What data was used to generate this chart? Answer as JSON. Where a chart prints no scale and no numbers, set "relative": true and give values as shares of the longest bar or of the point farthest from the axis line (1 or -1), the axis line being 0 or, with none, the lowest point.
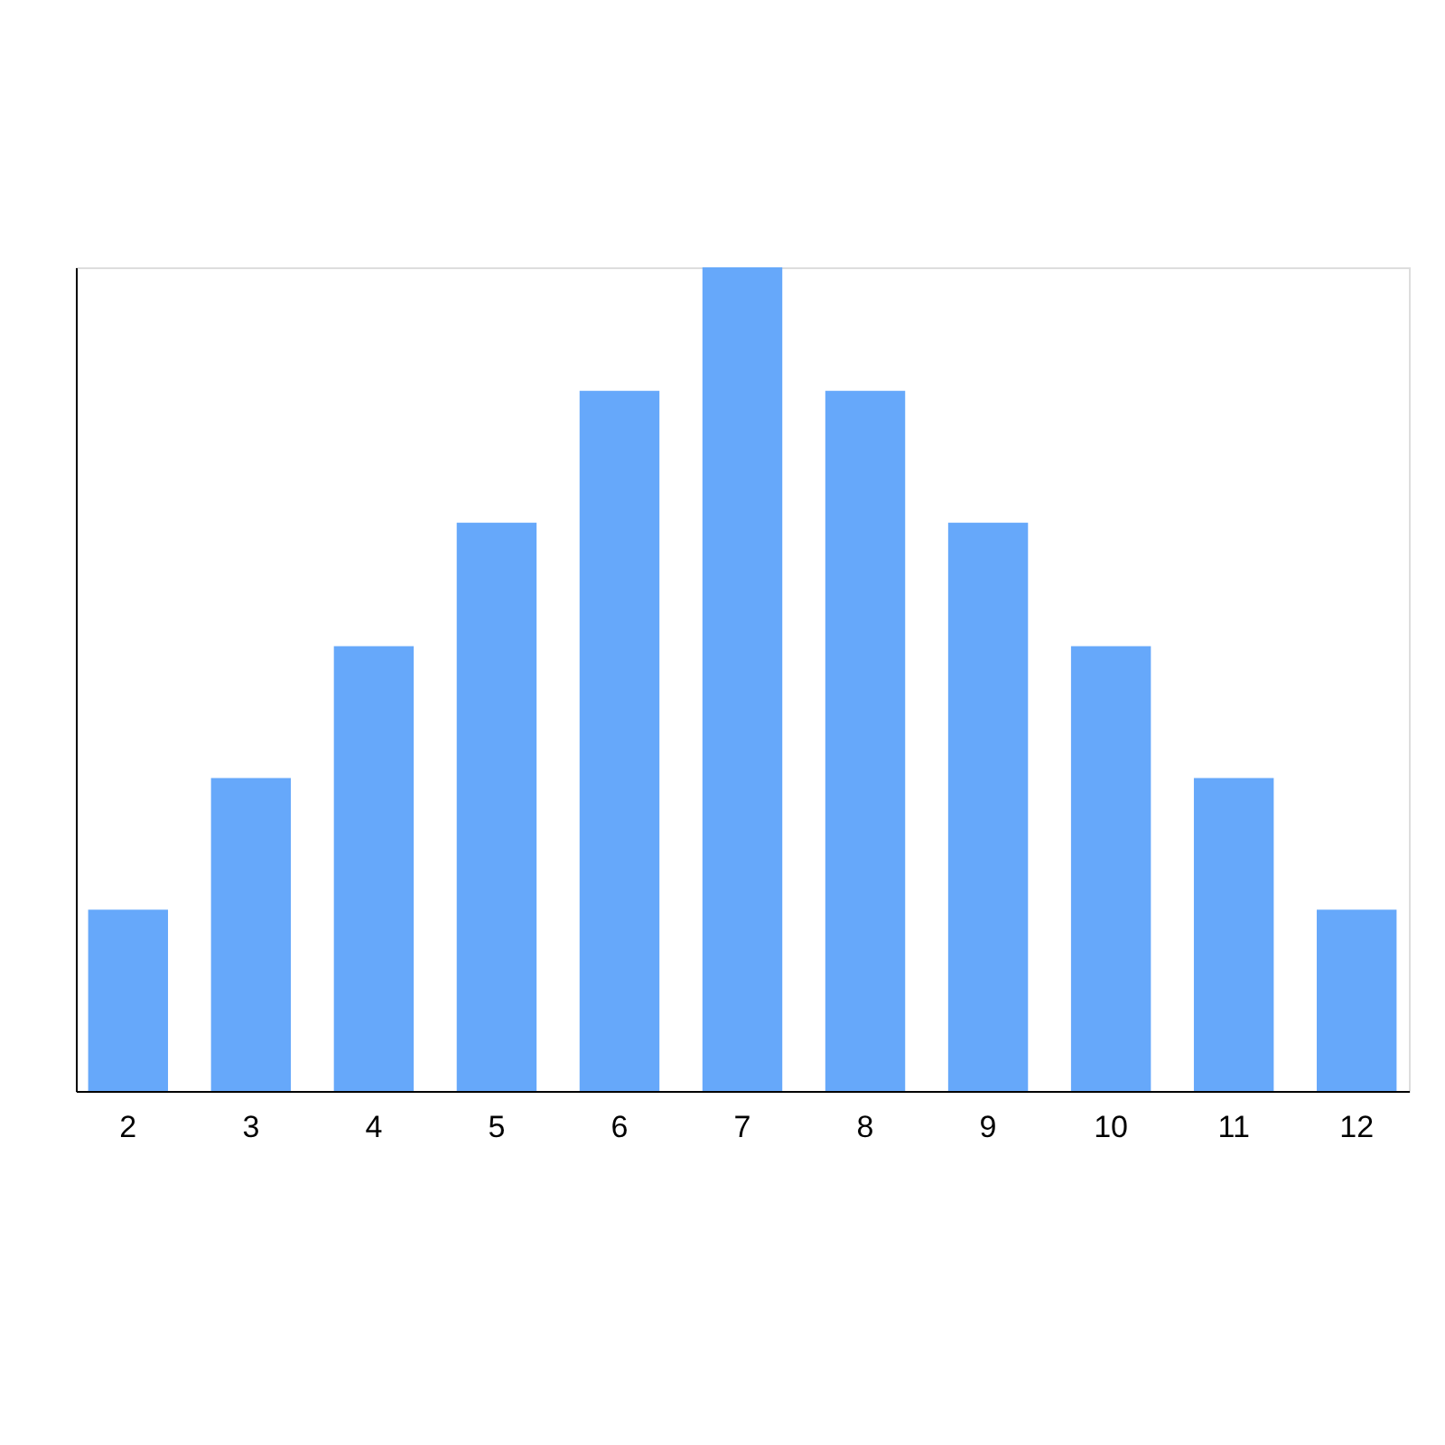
{
  "chart_data": {
    "type": "bar",
    "relative": true,
    "categories": [
      "2",
      "3",
      "4",
      "5",
      "6",
      "7",
      "8",
      "9",
      "10",
      "11",
      "12"
    ],
    "values": [
      0.22,
      0.38,
      0.54,
      0.69,
      0.85,
      1,
      0.85,
      0.69,
      0.54,
      0.38,
      0.22
    ],
    "color": "#66a8fa"
  }
}
